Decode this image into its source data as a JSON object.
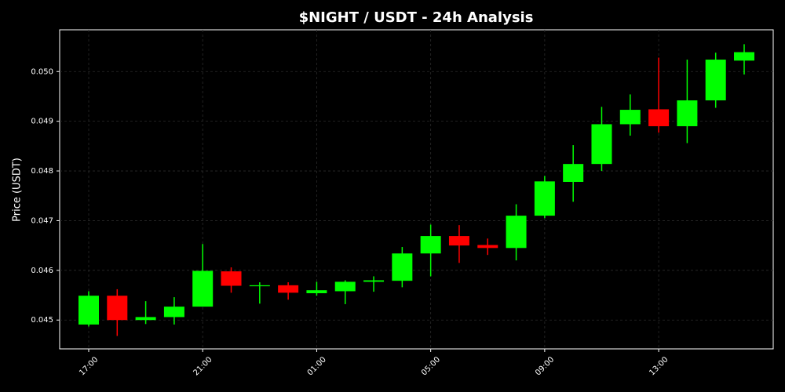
{
  "chart_data": {
    "type": "candlestick",
    "title": "$NIGHT / USDT - 24h Analysis",
    "y_label": "Price (USDT)",
    "categories": [
      "17:00",
      null,
      null,
      null,
      "21:00",
      null,
      null,
      null,
      "01:00",
      null,
      null,
      null,
      "05:00",
      null,
      null,
      null,
      "09:00",
      null,
      null,
      null,
      "13:00",
      null,
      null,
      null
    ],
    "open": [
      0.04491,
      0.04549,
      0.045,
      0.04506,
      0.04527,
      0.04598,
      0.04568,
      0.0457,
      0.04554,
      0.04558,
      0.04577,
      0.04579,
      0.04634,
      0.04669,
      0.04651,
      0.04645,
      0.0471,
      0.04778,
      0.04814,
      0.04894,
      0.04924,
      0.0489,
      0.04942,
      0.05022
    ],
    "high": [
      0.04558,
      0.04562,
      0.04538,
      0.04546,
      0.04653,
      0.04606,
      0.04576,
      0.04576,
      0.04577,
      0.0458,
      0.04588,
      0.04647,
      0.04692,
      0.04691,
      0.04664,
      0.04733,
      0.0479,
      0.04852,
      0.04929,
      0.04954,
      0.05028,
      0.05024,
      0.05038,
      0.05055
    ],
    "low": [
      0.04487,
      0.04468,
      0.04492,
      0.04491,
      0.04527,
      0.04555,
      0.04533,
      0.04541,
      0.04549,
      0.04532,
      0.04557,
      0.04566,
      0.04588,
      0.04615,
      0.04631,
      0.0462,
      0.04705,
      0.04738,
      0.048,
      0.04871,
      0.04877,
      0.04856,
      0.04927,
      0.04994
    ],
    "close": [
      0.04549,
      0.045,
      0.04506,
      0.04527,
      0.04599,
      0.04569,
      0.0457,
      0.04555,
      0.0456,
      0.04577,
      0.0458,
      0.04634,
      0.04669,
      0.0465,
      0.04645,
      0.0471,
      0.04779,
      0.04814,
      0.04894,
      0.04923,
      0.0489,
      0.04942,
      0.05024,
      0.05039
    ],
    "up_color": "#00ff00",
    "down_color": "#ff0000",
    "ylim": [
      0.04442,
      0.05084
    ],
    "yticks": [
      0.045,
      0.046,
      0.047,
      0.048,
      0.049,
      {
        "value": 0.05,
        "label": "0.050"
      }
    ],
    "grid": true
  }
}
